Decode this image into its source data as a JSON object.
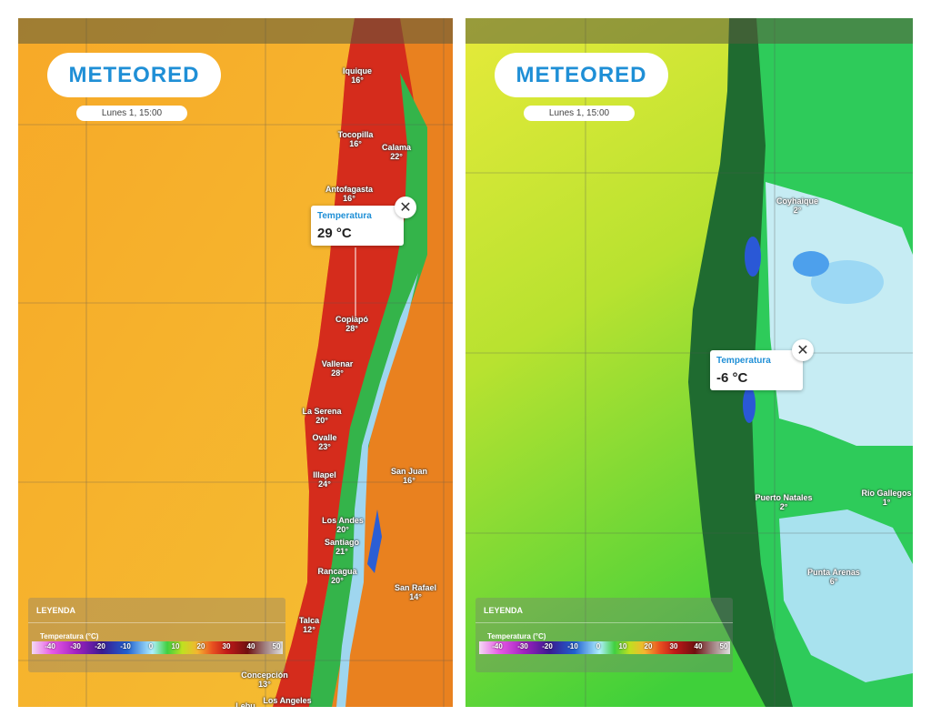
{
  "panels": [
    {
      "logo": "METEORED",
      "date": "Lunes 1, 15:00",
      "popup": {
        "title": "Temperatura",
        "value": "29 °C"
      },
      "cities": [
        {
          "name": "Iquique",
          "temp": "16°"
        },
        {
          "name": "Tocopilla",
          "temp": "16°"
        },
        {
          "name": "Calama",
          "temp": "22°"
        },
        {
          "name": "Antofagasta",
          "temp": "16°"
        },
        {
          "name": "Copiapó",
          "temp": "28°"
        },
        {
          "name": "Vallenar",
          "temp": "28°"
        },
        {
          "name": "La Serena",
          "temp": "20°"
        },
        {
          "name": "Ovalle",
          "temp": "23°"
        },
        {
          "name": "Illapel",
          "temp": "24°"
        },
        {
          "name": "San Juan",
          "temp": "16°"
        },
        {
          "name": "Los Andes",
          "temp": "20°"
        },
        {
          "name": "Santiago",
          "temp": "21°"
        },
        {
          "name": "Rancagua",
          "temp": "20°"
        },
        {
          "name": "San Rafael",
          "temp": "14°"
        },
        {
          "name": "Talca",
          "temp": "12°"
        },
        {
          "name": "Concepción",
          "temp": "13°"
        },
        {
          "name": "Lebu"
        },
        {
          "name": "Los Angeles"
        }
      ],
      "legend": {
        "title": "LEYENDA",
        "subtitle": "Temperatura (°C)",
        "scale": [
          -40,
          -30,
          -20,
          -10,
          0,
          10,
          20,
          30,
          40,
          50
        ]
      }
    },
    {
      "logo": "METEORED",
      "date": "Lunes 1, 15:00",
      "popup": {
        "title": "Temperatura",
        "value": "-6 °C"
      },
      "cities": [
        {
          "name": "Coyhaique",
          "temp": "2°"
        },
        {
          "name": "Puerto Natales",
          "temp": "2°"
        },
        {
          "name": "Rio Gallegos",
          "temp": "1°"
        },
        {
          "name": "Punta Arenas",
          "temp": "6°"
        }
      ],
      "legend": {
        "title": "LEYENDA",
        "subtitle": "Temperatura (°C)",
        "scale": [
          -40,
          -30,
          -20,
          -10,
          0,
          10,
          20,
          30,
          40,
          50
        ]
      }
    }
  ]
}
